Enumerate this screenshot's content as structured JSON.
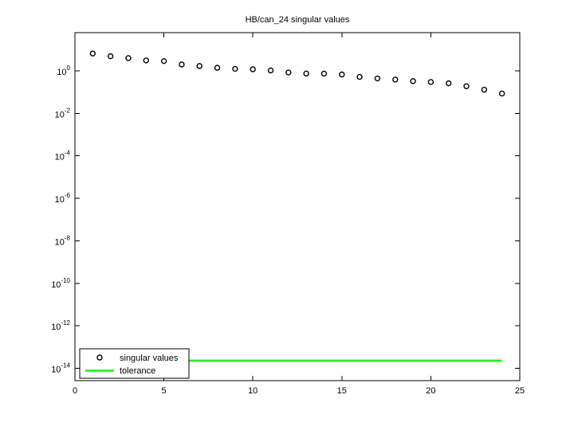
{
  "figure": {
    "background": "#ffffff"
  },
  "chart_data": {
    "type": "scatter",
    "title": "HB/can_24 singular values",
    "xlabel": "",
    "ylabel": "",
    "yscale": "log",
    "grid": false,
    "x": [
      1,
      2,
      3,
      4,
      5,
      6,
      7,
      8,
      9,
      10,
      11,
      12,
      13,
      14,
      15,
      16,
      17,
      18,
      19,
      20,
      21,
      22,
      23,
      24
    ],
    "series": [
      {
        "name": "singular values",
        "type": "scatter",
        "marker": "open-circle",
        "marker_color": "#000000",
        "values": [
          6.6,
          4.9,
          4.0,
          3.1,
          2.9,
          2.0,
          1.7,
          1.4,
          1.25,
          1.19,
          1.05,
          0.84,
          0.75,
          0.74,
          0.68,
          0.52,
          0.44,
          0.39,
          0.33,
          0.3,
          0.26,
          0.19,
          0.13,
          0.086
        ]
      },
      {
        "name": "tolerance",
        "type": "hline",
        "color": "#00ff00",
        "value": 2.3e-14,
        "x_span": [
          1,
          24
        ]
      }
    ],
    "x_ticks": [
      0,
      5,
      10,
      15,
      20,
      25
    ],
    "x_tick_labels": [
      "0",
      "5",
      "10",
      "15",
      "20",
      "25"
    ],
    "y_tick_exponents": [
      0,
      -2,
      -4,
      -6,
      -8,
      -10,
      -12,
      -14
    ],
    "y_tick_base": "10",
    "xlim": [
      0,
      25
    ],
    "ylim_log10": [
      -14.58,
      1.8
    ],
    "legend": {
      "position": "inside-bottom-left",
      "entries": [
        "singular values",
        "tolerance"
      ]
    }
  },
  "colors": {
    "tolerance_line": "#00ff00",
    "marker_stroke": "#000000",
    "axis": "#000000",
    "background": "#ffffff"
  }
}
